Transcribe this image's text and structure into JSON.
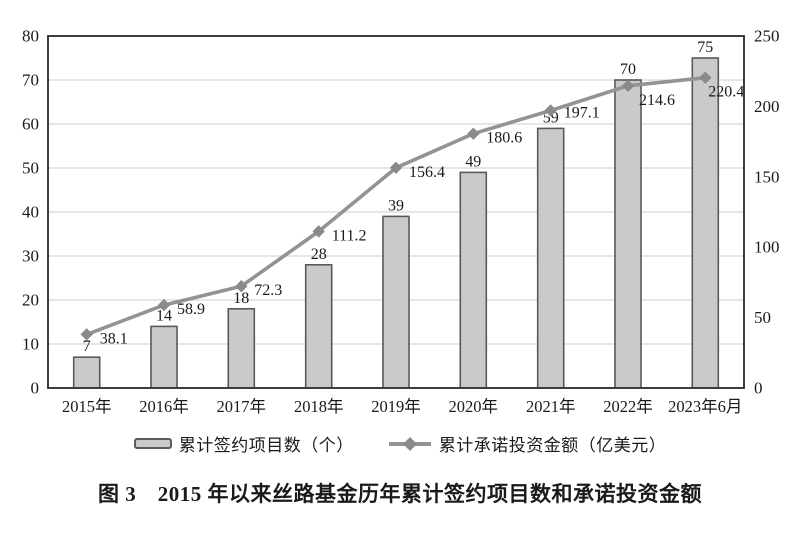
{
  "figure": {
    "caption": "图 3　2015 年以来丝路基金历年累计签约项目数和承诺投资金额"
  },
  "legend": {
    "bars_label": "累计签约项目数（个）",
    "line_label": "累计承诺投资金额（亿美元）"
  },
  "chart_data": {
    "type": "bar+line combo",
    "categories": [
      "2015年",
      "2016年",
      "2017年",
      "2018年",
      "2019年",
      "2020年",
      "2021年",
      "2022年",
      "2023年6月"
    ],
    "series": [
      {
        "name": "累计签约项目数（个）",
        "type": "bar",
        "axis": "left",
        "values": [
          7,
          14,
          18,
          28,
          39,
          49,
          59,
          70,
          75
        ]
      },
      {
        "name": "累计承诺投资金额（亿美元）",
        "type": "line",
        "axis": "right",
        "values": [
          38.1,
          58.9,
          72.3,
          111.2,
          156.4,
          180.6,
          197.1,
          214.6,
          220.4
        ]
      }
    ],
    "left_axis": {
      "min": 0,
      "max": 80,
      "step": 10,
      "ticks": [
        0,
        10,
        20,
        30,
        40,
        50,
        60,
        70,
        80
      ]
    },
    "right_axis": {
      "min": 0,
      "max": 250,
      "step": 50,
      "ticks": [
        0,
        50,
        100,
        150,
        200,
        250
      ]
    },
    "grid": "horizontal",
    "legend_position": "bottom",
    "data_labels": true,
    "title": "图 3　2015 年以来丝路基金历年累计签约项目数和承诺投资金额",
    "colors": {
      "bar_fill": "#cacaca",
      "bar_stroke": "#5a5a5a",
      "line": "#939393",
      "marker": "#8a8a8a",
      "grid": "#d8d8d8",
      "frame": "#3d3d3d",
      "text": "#1a1a1a",
      "background": "#ffffff"
    }
  }
}
